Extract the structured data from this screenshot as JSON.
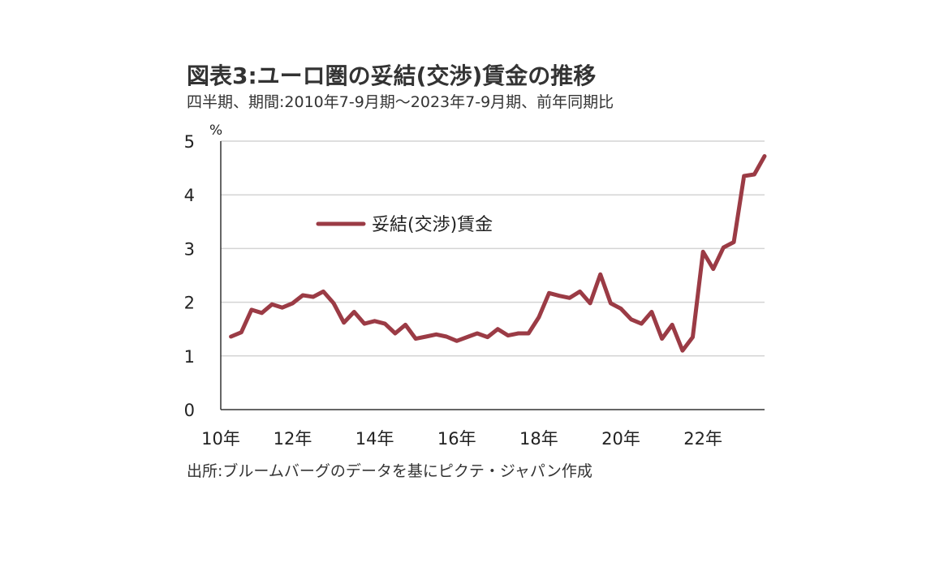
{
  "figure": {
    "title": "図表3:ユーロ圏の妥結(交渉)賃金の推移",
    "subtitle": "四半期、期間:2010年7-9月期〜2023年7-9月期、前年同期比",
    "source": "出所:ブルームバーグのデータを基にピクテ・ジャパン作成"
  },
  "chart_data": {
    "type": "line",
    "title": "図表3:ユーロ圏の妥結(交渉)賃金の推移",
    "subtitle": "四半期、期間:2010年7-9月期〜2023年7-9月期、前年同期比",
    "ylabel": "%",
    "xlabel": "",
    "ylim": [
      0,
      5
    ],
    "yticks": [
      0,
      1,
      2,
      3,
      4,
      5
    ],
    "xlim": [
      2010.5,
      2023.5
    ],
    "xticks": [
      {
        "value": 2010,
        "label": "10年"
      },
      {
        "value": 2012,
        "label": "12年"
      },
      {
        "value": 2014,
        "label": "14年"
      },
      {
        "value": 2016,
        "label": "16年"
      },
      {
        "value": 2018,
        "label": "18年"
      },
      {
        "value": 2020,
        "label": "20年"
      },
      {
        "value": 2022,
        "label": "22年"
      }
    ],
    "grid": {
      "horizontal": true,
      "vertical": false
    },
    "legend": {
      "position": "upper-left-inside"
    },
    "colors": {
      "series": "#9b3b45",
      "grid": "#d4d4d4",
      "axis": "#333333"
    },
    "series": [
      {
        "name": "妥結(交渉)賃金",
        "x": [
          "2010Q3",
          "2010Q4",
          "2011Q1",
          "2011Q2",
          "2011Q3",
          "2011Q4",
          "2012Q1",
          "2012Q2",
          "2012Q3",
          "2012Q4",
          "2013Q1",
          "2013Q2",
          "2013Q3",
          "2013Q4",
          "2014Q1",
          "2014Q2",
          "2014Q3",
          "2014Q4",
          "2015Q1",
          "2015Q2",
          "2015Q3",
          "2015Q4",
          "2016Q1",
          "2016Q2",
          "2016Q3",
          "2016Q4",
          "2017Q1",
          "2017Q2",
          "2017Q3",
          "2017Q4",
          "2018Q1",
          "2018Q2",
          "2018Q3",
          "2018Q4",
          "2019Q1",
          "2019Q2",
          "2019Q3",
          "2019Q4",
          "2020Q1",
          "2020Q2",
          "2020Q3",
          "2020Q4",
          "2021Q1",
          "2021Q2",
          "2021Q3",
          "2021Q4",
          "2022Q1",
          "2022Q2",
          "2022Q3",
          "2022Q4",
          "2023Q1",
          "2023Q2",
          "2023Q3"
        ],
        "values": [
          1.36,
          1.44,
          1.86,
          1.8,
          1.96,
          1.9,
          1.98,
          2.13,
          2.1,
          2.2,
          1.98,
          1.62,
          1.82,
          1.6,
          1.65,
          1.6,
          1.42,
          1.58,
          1.32,
          1.36,
          1.4,
          1.36,
          1.28,
          1.35,
          1.42,
          1.35,
          1.5,
          1.38,
          1.42,
          1.42,
          1.72,
          2.17,
          2.12,
          2.08,
          2.2,
          1.98,
          2.52,
          1.98,
          1.88,
          1.68,
          1.6,
          1.82,
          1.32,
          1.58,
          1.1,
          1.35,
          2.94,
          2.62,
          3.02,
          3.12,
          4.35,
          4.38,
          4.72
        ]
      }
    ]
  }
}
